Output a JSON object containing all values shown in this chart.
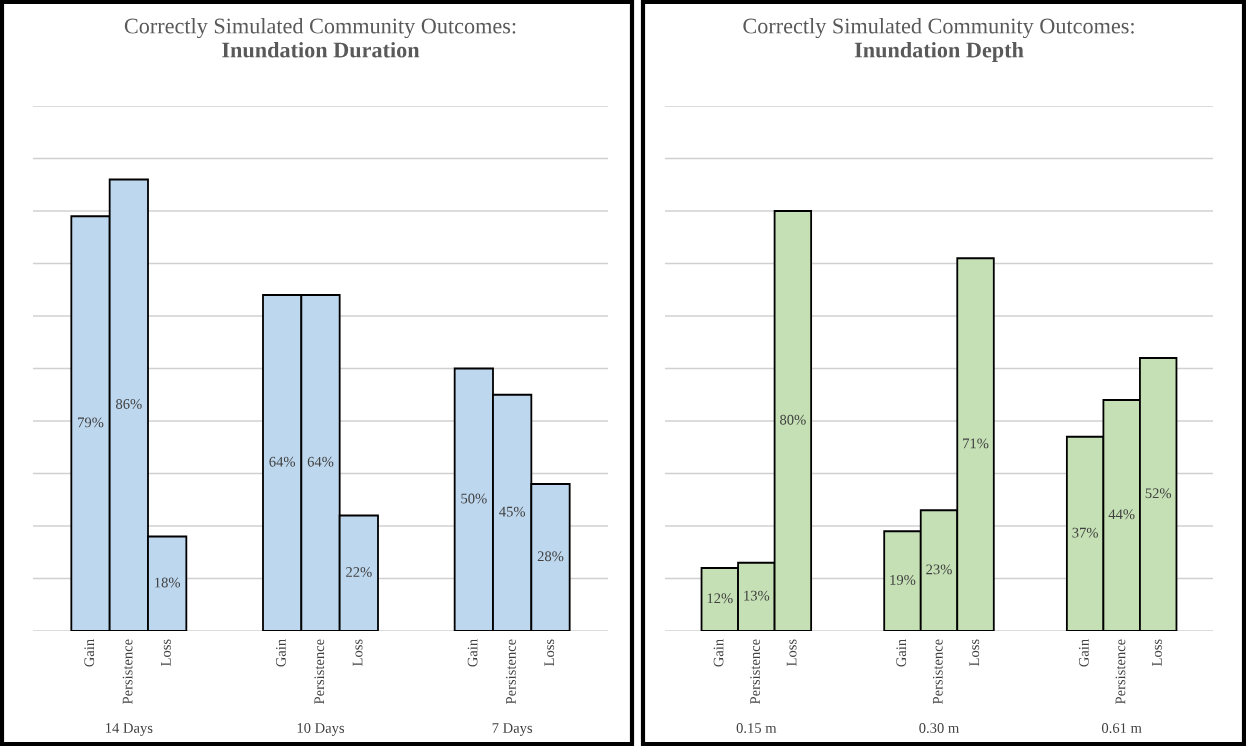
{
  "chart_data": [
    {
      "type": "bar",
      "title": "Correctly Simulated Community Outcomes:",
      "subtitle": "Inundation Duration",
      "categories": [
        "14 Days",
        "10 Days",
        "7 Days"
      ],
      "series": [
        {
          "name": "Gain",
          "color": "#bdd7ee",
          "values": [
            79,
            64,
            50
          ],
          "value_labels": [
            "79%",
            "64%",
            "50%"
          ]
        },
        {
          "name": "Persistence",
          "color": "#bdd7ee",
          "values": [
            86,
            64,
            45
          ],
          "value_labels": [
            "86%",
            "64%",
            "45%"
          ]
        },
        {
          "name": "Loss",
          "color": "#bdd7ee",
          "values": [
            18,
            22,
            28
          ],
          "value_labels": [
            "18%",
            "22%",
            "28%"
          ]
        }
      ],
      "ylim": [
        0,
        100
      ],
      "yticks": [
        {
          "value": 0,
          "label": null
        },
        {
          "value": 10,
          "label": null
        },
        {
          "value": 20,
          "label": null
        },
        {
          "value": 30,
          "label": null
        },
        {
          "value": 40,
          "label": null
        },
        {
          "value": 50,
          "label": null
        },
        {
          "value": 60,
          "label": null
        },
        {
          "value": 70,
          "label": null
        },
        {
          "value": 80,
          "label": null
        },
        {
          "value": 90,
          "label": null
        },
        {
          "value": 100,
          "label": null
        }
      ],
      "grid": "y"
    },
    {
      "type": "bar",
      "title": "Correctly Simulated Community Outcomes:",
      "subtitle": "Inundation Depth",
      "categories": [
        "0.15 m",
        "0.30 m",
        "0.61 m"
      ],
      "series": [
        {
          "name": "Gain",
          "color": "#c5e0b4",
          "values": [
            12,
            19,
            37
          ],
          "value_labels": [
            "12%",
            "19%",
            "37%"
          ]
        },
        {
          "name": "Persistence",
          "color": "#c5e0b4",
          "values": [
            13,
            23,
            44
          ],
          "value_labels": [
            "13%",
            "23%",
            "44%"
          ]
        },
        {
          "name": "Loss",
          "color": "#c5e0b4",
          "values": [
            80,
            71,
            52
          ],
          "value_labels": [
            "80%",
            "71%",
            "52%"
          ]
        }
      ],
      "ylim": [
        0,
        100
      ],
      "yticks": [
        {
          "value": 0,
          "label": null
        },
        {
          "value": 10,
          "label": null
        },
        {
          "value": 20,
          "label": null
        },
        {
          "value": 30,
          "label": null
        },
        {
          "value": 40,
          "label": null
        },
        {
          "value": 50,
          "label": null
        },
        {
          "value": 60,
          "label": null
        },
        {
          "value": 70,
          "label": null
        },
        {
          "value": 80,
          "label": null
        },
        {
          "value": 90,
          "label": null
        },
        {
          "value": 100,
          "label": null
        }
      ],
      "grid": "y"
    }
  ]
}
